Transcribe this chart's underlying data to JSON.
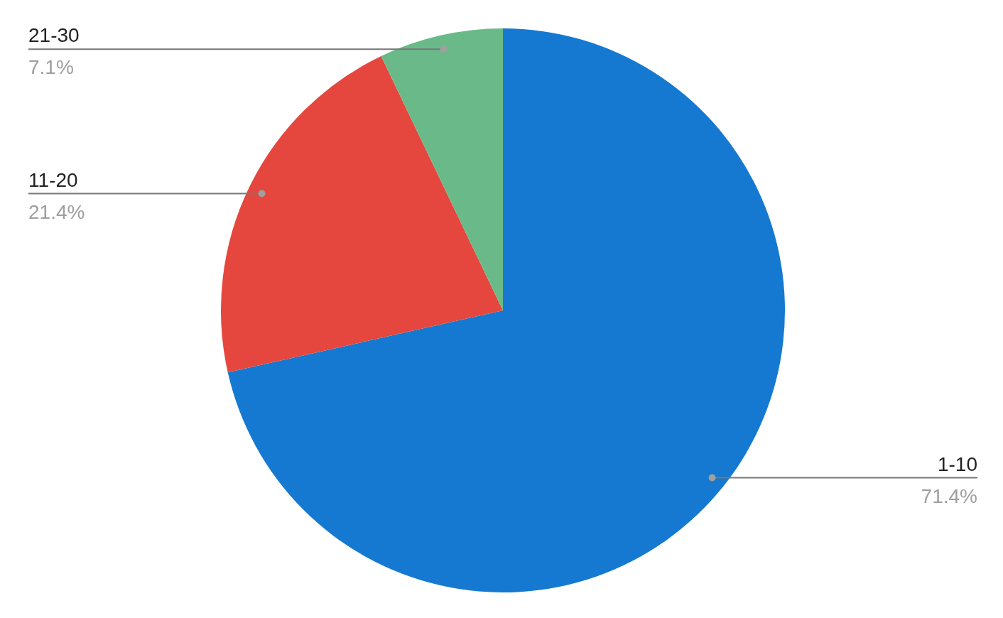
{
  "chart_data": {
    "type": "pie",
    "categories": [
      "1-10",
      "11-20",
      "21-30"
    ],
    "values": [
      71.4,
      21.4,
      7.1
    ],
    "value_labels": [
      "71.4%",
      "21.4%",
      "7.1%"
    ],
    "colors": [
      "#1579d1",
      "#e5473e",
      "#6aba89"
    ],
    "legend": false
  }
}
